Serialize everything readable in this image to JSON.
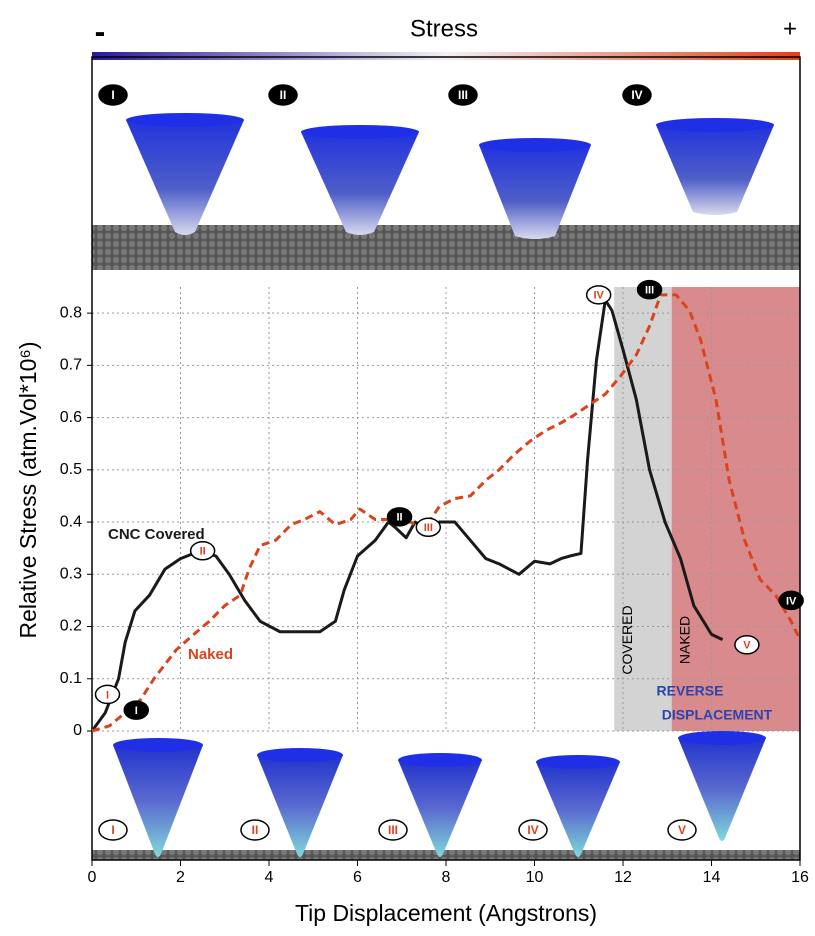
{
  "colorbar": {
    "title": "Stress",
    "low": "-",
    "high": "+"
  },
  "insets": {
    "top_labels": [
      "I",
      "II",
      "III",
      "IV"
    ],
    "bottom_labels": [
      "I",
      "II",
      "III",
      "IV",
      "V"
    ]
  },
  "chart_data": {
    "type": "line",
    "xlabel": "Tip Displacement (Angstrons)",
    "ylabel": "Relative Stress (atm.Vol*10⁶)",
    "xlim": [
      0,
      16
    ],
    "ylim": [
      0,
      0.85
    ],
    "xticks": [
      0,
      2,
      4,
      6,
      8,
      10,
      12,
      14,
      16
    ],
    "yticks": [
      0,
      0.1,
      0.2,
      0.3,
      0.4,
      0.5,
      0.6,
      0.7,
      0.8
    ],
    "grid": true,
    "series": [
      {
        "name": "CNC Covered",
        "color": "#1a1a1a",
        "dash": "solid",
        "x": [
          0,
          0.3,
          0.6,
          0.75,
          0.97,
          1.3,
          1.65,
          2,
          2.45,
          2.8,
          3.1,
          3.45,
          3.8,
          4.25,
          4.7,
          5.15,
          5.5,
          5.7,
          6,
          6.4,
          6.7,
          6.85,
          7.1,
          7.3,
          7.5,
          7.85,
          8.2,
          8.55,
          8.9,
          9.2,
          9.65,
          10,
          10.35,
          10.6,
          10.8,
          11.05,
          11.2,
          11.4,
          11.6,
          11.75,
          12,
          12.3,
          12.6,
          12.95,
          13.3,
          13.6,
          14,
          14.25
        ],
        "values": [
          0,
          0.035,
          0.1,
          0.17,
          0.23,
          0.26,
          0.31,
          0.33,
          0.345,
          0.335,
          0.3,
          0.25,
          0.21,
          0.19,
          0.19,
          0.19,
          0.21,
          0.27,
          0.335,
          0.365,
          0.4,
          0.39,
          0.37,
          0.4,
          0.39,
          0.4,
          0.4,
          0.365,
          0.33,
          0.32,
          0.3,
          0.325,
          0.32,
          0.33,
          0.335,
          0.34,
          0.52,
          0.71,
          0.825,
          0.805,
          0.73,
          0.635,
          0.5,
          0.4,
          0.33,
          0.24,
          0.185,
          0.175
        ]
      },
      {
        "name": "Naked",
        "color": "#d9441e",
        "dash": "dashed",
        "x": [
          0,
          0.4,
          0.75,
          1.1,
          1.4,
          1.9,
          2.3,
          2.65,
          3,
          3.35,
          3.55,
          3.8,
          4.15,
          4.5,
          4.8,
          5.15,
          5.5,
          5.85,
          6.05,
          6.4,
          6.75,
          7.2,
          7.5,
          7.85,
          8.2,
          8.55,
          8.9,
          9.2,
          9.55,
          9.9,
          10.25,
          10.6,
          10.9,
          11.25,
          11.6,
          11.95,
          12.3,
          12.6,
          12.85,
          13.2,
          13.5,
          13.75,
          14.1,
          14.4,
          14.75,
          15.1,
          15.45,
          15.8,
          16
        ],
        "values": [
          0,
          0.01,
          0.035,
          0.06,
          0.1,
          0.155,
          0.185,
          0.21,
          0.24,
          0.26,
          0.31,
          0.355,
          0.365,
          0.395,
          0.405,
          0.42,
          0.395,
          0.405,
          0.425,
          0.405,
          0.405,
          0.4,
          0.385,
          0.43,
          0.445,
          0.45,
          0.48,
          0.5,
          0.53,
          0.555,
          0.575,
          0.59,
          0.605,
          0.625,
          0.645,
          0.68,
          0.72,
          0.775,
          0.835,
          0.835,
          0.805,
          0.75,
          0.635,
          0.48,
          0.365,
          0.29,
          0.26,
          0.21,
          0.175
        ]
      }
    ],
    "regions": [
      {
        "label": "COVERED",
        "x": [
          11.8,
          13.1
        ],
        "color": "#d3d3d3"
      },
      {
        "label": "NAKED",
        "x": [
          13.1,
          16
        ],
        "color": "#d98a8c"
      }
    ],
    "annotations": [
      "CNC Covered",
      "Naked",
      "REVERSE",
      "DISPLACEMENT"
    ],
    "markers": [
      {
        "label": "I",
        "x": 0.35,
        "y": 0.07,
        "style": "light"
      },
      {
        "label": "II",
        "x": 2.5,
        "y": 0.345,
        "style": "light"
      },
      {
        "label": "III",
        "x": 7.6,
        "y": 0.39,
        "style": "light"
      },
      {
        "label": "IV",
        "x": 11.45,
        "y": 0.835,
        "style": "light"
      },
      {
        "label": "V",
        "x": 14.8,
        "y": 0.165,
        "style": "light"
      },
      {
        "label": "I",
        "x": 1,
        "y": 0.04,
        "style": "dark"
      },
      {
        "label": "II",
        "x": 6.95,
        "y": 0.41,
        "style": "dark"
      },
      {
        "label": "III",
        "x": 12.6,
        "y": 0.845,
        "style": "dark"
      },
      {
        "label": "IV",
        "x": 15.8,
        "y": 0.25,
        "style": "dark"
      }
    ]
  }
}
